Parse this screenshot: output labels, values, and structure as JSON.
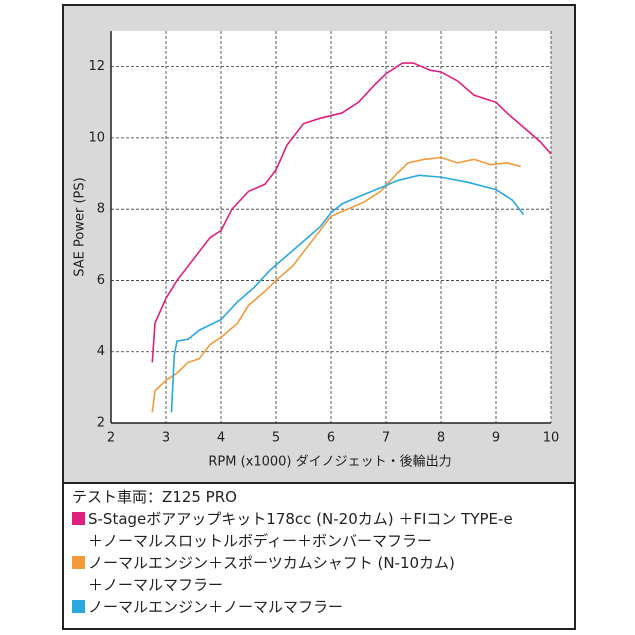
{
  "chart_data": {
    "type": "line",
    "xlabel": "RPM (x1000) ダイノジェット・後輪出力",
    "ylabel": "SAE Power (PS)",
    "xlim": [
      2,
      10
    ],
    "xticks": [
      2,
      3,
      4,
      5,
      6,
      7,
      8,
      9,
      10
    ],
    "ylim": [
      2,
      13
    ],
    "yticks": [
      2,
      4,
      6,
      8,
      10,
      12
    ],
    "grid": true,
    "legend_title": "テスト車両：Z125 PRO",
    "series": [
      {
        "name": "S-Stageボアアップキット178cc (N-20カム) ＋FIコン TYPE-e\n＋ノーマルスロットルボディー＋ボンバーマフラー",
        "color": "#e0207f",
        "x": [
          2.75,
          2.8,
          3.0,
          3.2,
          3.5,
          3.8,
          4.0,
          4.2,
          4.5,
          4.8,
          5.0,
          5.2,
          5.5,
          5.8,
          6.2,
          6.5,
          6.8,
          7.0,
          7.3,
          7.5,
          7.8,
          8.0,
          8.3,
          8.6,
          9.0,
          9.2,
          9.5,
          9.8,
          10.0
        ],
        "values": [
          3.7,
          4.8,
          5.5,
          6.0,
          6.6,
          7.2,
          7.4,
          8.0,
          8.5,
          8.7,
          9.1,
          9.8,
          10.4,
          10.55,
          10.7,
          11.0,
          11.5,
          11.8,
          12.1,
          12.1,
          11.9,
          11.85,
          11.6,
          11.2,
          11.0,
          10.7,
          10.3,
          9.9,
          9.55
        ]
      },
      {
        "name": "ノーマルエンジン＋スポーツカムシャフト (N-10カム)\n＋ノーマルマフラー",
        "color": "#f39a3a",
        "x": [
          2.75,
          2.8,
          3.0,
          3.2,
          3.4,
          3.6,
          3.8,
          4.0,
          4.3,
          4.5,
          4.8,
          5.0,
          5.3,
          5.6,
          5.8,
          6.0,
          6.3,
          6.6,
          6.9,
          7.2,
          7.4,
          7.7,
          8.0,
          8.3,
          8.6,
          8.9,
          9.2,
          9.45
        ],
        "values": [
          2.3,
          2.9,
          3.2,
          3.4,
          3.7,
          3.8,
          4.2,
          4.4,
          4.8,
          5.3,
          5.7,
          6.0,
          6.4,
          7.0,
          7.4,
          7.8,
          8.0,
          8.2,
          8.5,
          9.0,
          9.3,
          9.4,
          9.45,
          9.3,
          9.4,
          9.25,
          9.3,
          9.2
        ]
      },
      {
        "name": "ノーマルエンジン＋ノーマルマフラー",
        "color": "#2aa8e0",
        "x": [
          3.1,
          3.15,
          3.2,
          3.4,
          3.6,
          4.0,
          4.3,
          4.6,
          4.9,
          5.2,
          5.5,
          5.8,
          6.0,
          6.2,
          6.5,
          6.9,
          7.2,
          7.6,
          8.0,
          8.5,
          9.0,
          9.3,
          9.5
        ],
        "values": [
          2.3,
          3.9,
          4.3,
          4.35,
          4.6,
          4.9,
          5.4,
          5.8,
          6.3,
          6.7,
          7.1,
          7.5,
          7.9,
          8.15,
          8.35,
          8.6,
          8.8,
          8.95,
          8.9,
          8.75,
          8.55,
          8.25,
          7.85
        ]
      }
    ]
  }
}
